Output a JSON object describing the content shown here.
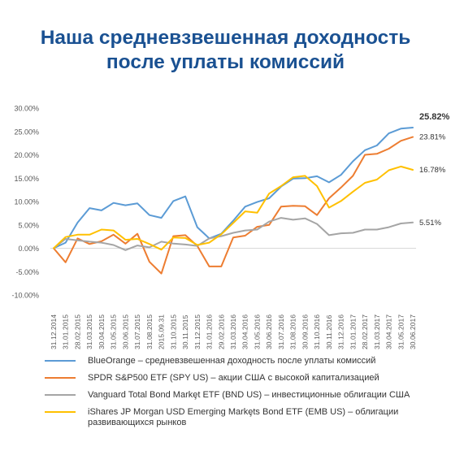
{
  "header": {
    "title_line1": "Наша средневзвешенная доходность",
    "title_line2": "после уплаты комиссий"
  },
  "chart_data": {
    "type": "line",
    "ylim": [
      -10,
      30
    ],
    "y_ticks": [
      "-10.00%",
      "-5.00%",
      "0.00%",
      "5.00%",
      "10.00%",
      "15.00%",
      "20.00%",
      "25.00%",
      "30.00%"
    ],
    "grid": false,
    "legend_position": "bottom",
    "categories": [
      "31.12.2014",
      "31.01.2015",
      "28.02.2015",
      "31.03.2015",
      "30.04.2015",
      "31.05.2015",
      "30.06.2015",
      "31.07.2015",
      "31.08.2015",
      "2015.09.31",
      "31.10.2015",
      "30.11.2015",
      "31.12.2015",
      "31.01.2016",
      "29.02.2016",
      "31.03.2016",
      "30.04.2016",
      "31.05.2016",
      "30.06.2016",
      "31.07.2016",
      "31.08.2016",
      "30.09.2016",
      "31.10.2016",
      "30.11.2016",
      "31.12.2016",
      "31.01.2017",
      "28.02.2017",
      "31.03.2017",
      "30.04.2017",
      "31.05.2017",
      "30.06.2017"
    ],
    "series": [
      {
        "name": "BlueOrange – средневзвешенная доходность после уплаты комиссий",
        "color": "#5b9bd5",
        "values": [
          0,
          1.2,
          5.5,
          8.6,
          8.1,
          9.7,
          9.2,
          9.6,
          7.1,
          6.5,
          10.1,
          11.1,
          4.5,
          2.1,
          3.1,
          5.9,
          8.9,
          9.9,
          10.7,
          13.2,
          14.9,
          15.0,
          15.4,
          14.1,
          15.7,
          18.6,
          21.0,
          22.0,
          24.6,
          25.6,
          25.82
        ],
        "end_label": "25.82%"
      },
      {
        "name": "SPDR S&P500 ETF (SPY US) – акции США с высокой капитализацией",
        "color": "#ed7d31",
        "values": [
          0,
          -3.0,
          2.1,
          0.9,
          1.5,
          2.9,
          1.0,
          3.1,
          -2.9,
          -5.4,
          2.6,
          2.8,
          0.5,
          -3.9,
          -3.9,
          2.3,
          2.7,
          4.6,
          5.0,
          8.9,
          9.1,
          9.0,
          7.1,
          10.7,
          13.0,
          15.5,
          20.0,
          20.2,
          21.3,
          23.0,
          23.81
        ],
        "end_label": "23.81%"
      },
      {
        "name": "Vanguard Total Bond Markȩt ETF (BND US) – инвестиционные облигации США",
        "color": "#a5a5a5",
        "values": [
          0,
          2.0,
          1.7,
          1.4,
          1.2,
          0.7,
          -0.4,
          0.6,
          0.2,
          1.4,
          1.0,
          0.8,
          0.5,
          2.1,
          2.6,
          3.3,
          3.8,
          4.0,
          5.7,
          6.5,
          6.1,
          6.4,
          5.2,
          2.8,
          3.2,
          3.3,
          4.0,
          4.0,
          4.5,
          5.3,
          5.51
        ],
        "end_label": "5.51%"
      },
      {
        "name": "iShares JP Morgan USD Emerging Markȩts Bond ETF (EMB US) – облигации развивающихся рынков",
        "color": "#ffc000",
        "values": [
          0,
          2.4,
          2.9,
          2.9,
          4.0,
          3.8,
          1.8,
          2.0,
          0.9,
          -0.3,
          2.3,
          2.2,
          0.7,
          1.2,
          3.0,
          5.4,
          7.9,
          7.6,
          11.7,
          13.3,
          15.2,
          15.5,
          13.3,
          8.7,
          10.1,
          12.1,
          14.0,
          14.7,
          16.7,
          17.5,
          16.78
        ],
        "end_label": "16.78%"
      }
    ]
  },
  "legend": {
    "items": [
      {
        "label": "BlueOrange – средневзвешенная доходность после уплаты комиссий",
        "color": "#5b9bd5"
      },
      {
        "label": "SPDR S&P500 ETF (SPY US) – акции США с высокой капитализацией",
        "color": "#ed7d31"
      },
      {
        "label": "Vanguard Total Bond Markȩt ETF (BND US) – инвестиционные облигации США",
        "color": "#a5a5a5"
      },
      {
        "label": "iShares JP Morgan USD Emerging Markȩts Bond ETF (EMB US) – облигации развивающихся рынков",
        "color": "#ffc000"
      }
    ]
  }
}
